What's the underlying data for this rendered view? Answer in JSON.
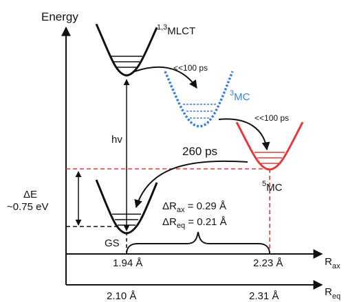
{
  "axes": {
    "y_label": "Energy",
    "x_ax_label_main": "R",
    "x_ax_label_sub": "ax",
    "x_eq_label_main": "R",
    "x_eq_label_sub": "eq",
    "ax_ticks": [
      "1.94 Å",
      "2.23 Å"
    ],
    "eq_ticks": [
      "2.10 Å",
      "2.31 Å"
    ]
  },
  "states": {
    "mlct_sup": "1,3",
    "mlct_main": "MLCT",
    "mc3_sup": "3",
    "mc3_main": "MC",
    "mc5_sup": "5",
    "mc5_main": "MC",
    "gs": "GS"
  },
  "transitions": {
    "excitation": "hv",
    "isc1": "<<100 ps",
    "isc2": "<<100 ps",
    "relax": "260 ps"
  },
  "energy_gap": {
    "symbol": "ΔE",
    "value": "~0.75 eV"
  },
  "displacements": {
    "ax_prefix": "ΔR",
    "ax_sub": "ax",
    "ax_value": " = 0.29 Å",
    "eq_prefix": "ΔR",
    "eq_sub": "eq",
    "eq_value": " = 0.21 Å"
  },
  "colors": {
    "ground_and_mlct": "#111111",
    "mc3": "#3a7fd5",
    "mc5": "#e23b3b",
    "guide": "#e23b3b"
  }
}
